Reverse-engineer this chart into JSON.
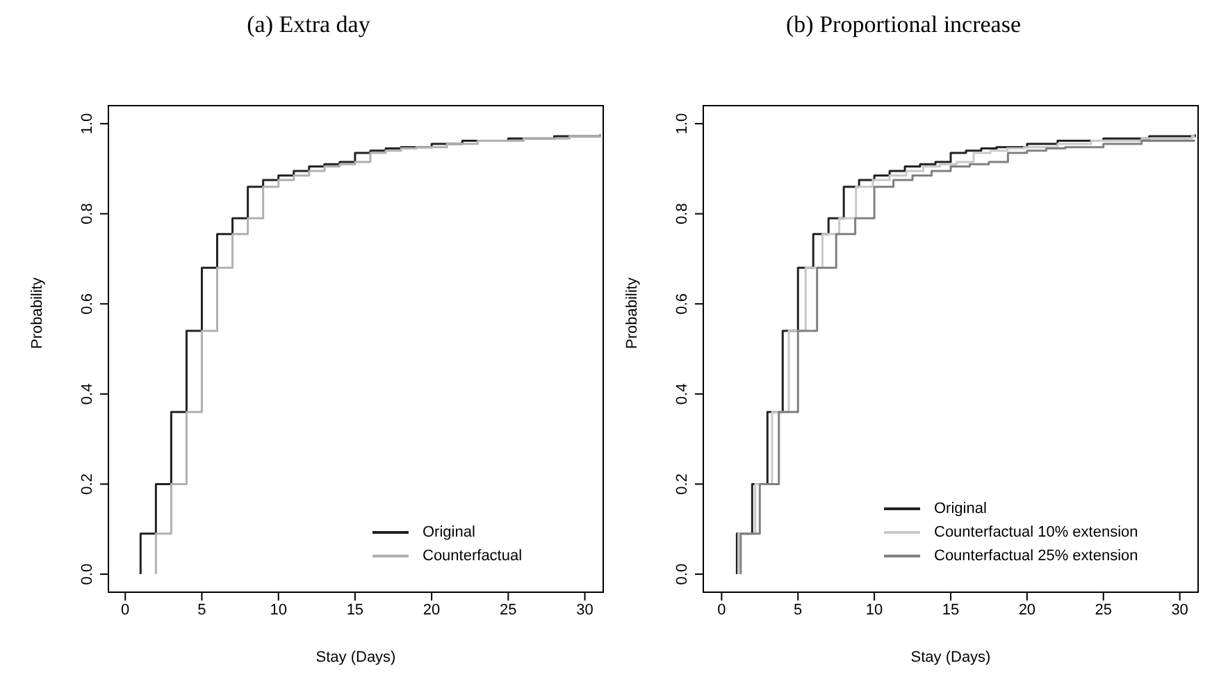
{
  "chart_data": [
    {
      "type": "step",
      "title": "(a) Extra day",
      "xlabel": "Stay (Days)",
      "ylabel": "Probability",
      "xlim": [
        -1.1,
        31.2
      ],
      "xticks": [
        0,
        5,
        10,
        15,
        20,
        25,
        30
      ],
      "ylim": [
        -0.04,
        1.04
      ],
      "yticks": [
        {
          "value": 0,
          "label": "0.0"
        },
        {
          "value": 0.2,
          "label": "0.2"
        },
        {
          "value": 0.4,
          "label": "0.4"
        },
        {
          "value": 0.6,
          "label": "0.6"
        },
        {
          "value": 0.8,
          "label": "0.8"
        },
        {
          "value": 1,
          "label": "1.0"
        }
      ],
      "grid": false,
      "legend": "bottom right",
      "series": [
        {
          "name": "Original",
          "color": "#222222",
          "x": [
            1,
            1,
            2,
            3,
            4,
            5,
            6,
            7,
            8,
            9,
            10,
            11,
            12,
            13,
            14,
            15,
            16,
            17,
            18,
            20,
            22,
            25,
            28,
            31
          ],
          "values": [
            0,
            0.09,
            0.2,
            0.36,
            0.54,
            0.68,
            0.755,
            0.79,
            0.86,
            0.875,
            0.885,
            0.895,
            0.905,
            0.91,
            0.915,
            0.935,
            0.94,
            0.945,
            0.948,
            0.955,
            0.962,
            0.967,
            0.972,
            0.976
          ]
        },
        {
          "name": "Counterfactual",
          "color": "#b0b0b0",
          "x": [
            2,
            2,
            3,
            4,
            5,
            6,
            7,
            8,
            9,
            10,
            11,
            12,
            13,
            14,
            15,
            16,
            17,
            18,
            19,
            21,
            23,
            26,
            29,
            31
          ],
          "values": [
            0,
            0.09,
            0.2,
            0.36,
            0.54,
            0.68,
            0.755,
            0.79,
            0.86,
            0.875,
            0.885,
            0.895,
            0.905,
            0.91,
            0.915,
            0.935,
            0.94,
            0.945,
            0.948,
            0.955,
            0.962,
            0.967,
            0.972,
            0.975
          ]
        }
      ]
    },
    {
      "type": "step",
      "title": "(b) Proportional increase",
      "xlabel": "Stay (Days)",
      "ylabel": "Probability",
      "xlim": [
        -1.2,
        31.2
      ],
      "xticks": [
        0,
        5,
        10,
        15,
        20,
        25,
        30
      ],
      "ylim": [
        -0.04,
        1.04
      ],
      "yticks": [
        {
          "value": 0,
          "label": "0.0"
        },
        {
          "value": 0.2,
          "label": "0.2"
        },
        {
          "value": 0.4,
          "label": "0.4"
        },
        {
          "value": 0.6,
          "label": "0.6"
        },
        {
          "value": 0.8,
          "label": "0.8"
        },
        {
          "value": 1,
          "label": "1.0"
        }
      ],
      "grid": false,
      "legend": "bottom right",
      "series": [
        {
          "name": "Original",
          "color": "#222222",
          "x": [
            1,
            1,
            2,
            3,
            4,
            5,
            6,
            7,
            8,
            9,
            10,
            11,
            12,
            13,
            14,
            15,
            16,
            17,
            18,
            20,
            22,
            25,
            28,
            31
          ],
          "values": [
            0,
            0.09,
            0.2,
            0.36,
            0.54,
            0.68,
            0.755,
            0.79,
            0.86,
            0.875,
            0.885,
            0.895,
            0.905,
            0.91,
            0.915,
            0.935,
            0.94,
            0.945,
            0.948,
            0.955,
            0.962,
            0.967,
            0.972,
            0.976
          ]
        },
        {
          "name": "Counterfactual 10% extension",
          "color": "#c8c8c8",
          "x": [
            1.1,
            1.1,
            2.2,
            3.3,
            4.4,
            5.5,
            6.6,
            7.7,
            8.8,
            9.9,
            11,
            12.1,
            13.2,
            14.3,
            15.4,
            16.5,
            17.6,
            18.7,
            19.8,
            22,
            24.2,
            27.5,
            30.8,
            31
          ],
          "values": [
            0,
            0.09,
            0.2,
            0.36,
            0.54,
            0.68,
            0.755,
            0.79,
            0.86,
            0.875,
            0.885,
            0.895,
            0.905,
            0.91,
            0.915,
            0.935,
            0.94,
            0.945,
            0.948,
            0.955,
            0.962,
            0.967,
            0.972,
            0.972
          ]
        },
        {
          "name": "Counterfactual 25% extension",
          "color": "#808080",
          "x": [
            1.25,
            1.25,
            2.5,
            3.75,
            5,
            6.25,
            7.5,
            8.75,
            10,
            11.25,
            12.5,
            13.75,
            15,
            16.25,
            17.5,
            18.75,
            20,
            21.25,
            22.5,
            25,
            27.5,
            31
          ],
          "values": [
            0,
            0.09,
            0.2,
            0.36,
            0.54,
            0.68,
            0.755,
            0.79,
            0.86,
            0.875,
            0.885,
            0.895,
            0.905,
            0.91,
            0.915,
            0.935,
            0.94,
            0.945,
            0.948,
            0.955,
            0.962,
            0.962
          ]
        }
      ]
    }
  ]
}
